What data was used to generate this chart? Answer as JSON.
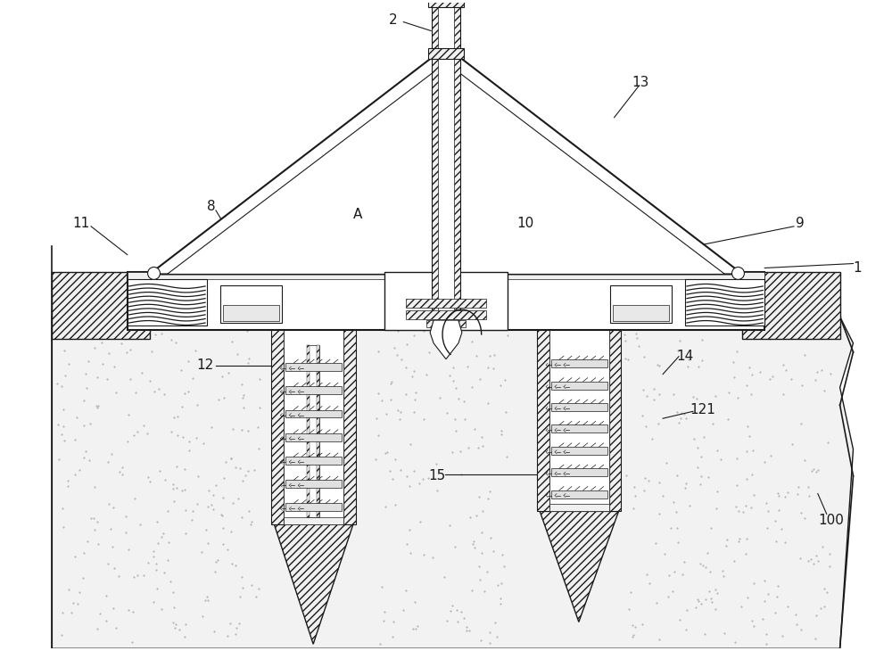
{
  "bg_color": "#ffffff",
  "line_color": "#1a1a1a",
  "soil_dot_color": "#bbbbbb",
  "hatch_fc": "#f0f0f0",
  "white": "#ffffff",
  "figsize": [
    10.0,
    7.3
  ],
  "dpi": 100,
  "xlim": [
    0,
    1000
  ],
  "ylim": [
    0,
    730
  ]
}
